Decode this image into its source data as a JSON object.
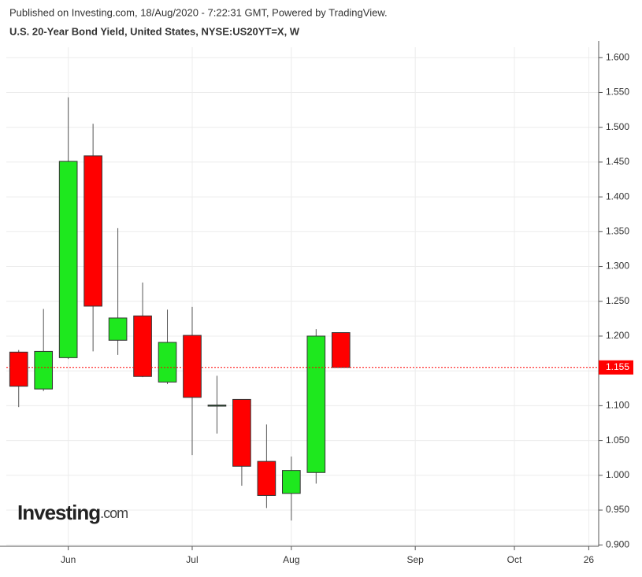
{
  "header": {
    "published": "Published on Investing.com, 18/Aug/2020 - 7:22:31 GMT, Powered by TradingView.",
    "title": "U.S. 20-Year Bond Yield, United States, NYSE:US20YT=X, W"
  },
  "watermark": {
    "brand": "Investing",
    "suffix": ".com"
  },
  "chart_data": {
    "type": "candlestick",
    "open": [
      1.177,
      1.124,
      1.169,
      1.459,
      1.194,
      1.229,
      1.134,
      1.201,
      1.101,
      1.109,
      1.02,
      0.974,
      1.004,
      1.205
    ],
    "high": [
      1.18,
      1.239,
      1.543,
      1.505,
      1.355,
      1.277,
      1.238,
      1.242,
      1.143,
      1.109,
      1.073,
      1.027,
      1.21,
      1.205
    ],
    "low": [
      1.098,
      1.121,
      1.167,
      1.178,
      1.173,
      1.141,
      1.131,
      1.029,
      1.06,
      0.985,
      0.953,
      0.935,
      0.988,
      1.155
    ],
    "close": [
      1.128,
      1.178,
      1.451,
      1.243,
      1.226,
      1.142,
      1.191,
      1.112,
      1.101,
      1.013,
      0.971,
      1.007,
      1.2,
      1.155
    ],
    "up_color": "#1ee81e",
    "down_color": "#ff0000",
    "last_value": 1.155,
    "last_color": "#ff0000",
    "xlim": [
      -0.5,
      23.4
    ],
    "xticks": [
      {
        "value": 2,
        "label": "Jun"
      },
      {
        "value": 7,
        "label": "Jul"
      },
      {
        "value": 11,
        "label": "Aug"
      },
      {
        "value": 16,
        "label": "Sep"
      },
      {
        "value": 20,
        "label": "Oct"
      },
      {
        "value": 23,
        "label": "26"
      }
    ],
    "ylim": [
      0.898,
      1.615
    ],
    "yticks": [
      {
        "value": 0.9,
        "label": "0.900"
      },
      {
        "value": 0.95,
        "label": "0.950"
      },
      {
        "value": 1.0,
        "label": "1.000"
      },
      {
        "value": 1.05,
        "label": "1.050"
      },
      {
        "value": 1.1,
        "label": "1.100"
      },
      {
        "value": 1.15,
        "label": "1.150"
      },
      {
        "value": 1.2,
        "label": "1.200"
      },
      {
        "value": 1.25,
        "label": "1.250"
      },
      {
        "value": 1.3,
        "label": "1.300"
      },
      {
        "value": 1.35,
        "label": "1.350"
      },
      {
        "value": 1.4,
        "label": "1.400"
      },
      {
        "value": 1.45,
        "label": "1.450"
      },
      {
        "value": 1.5,
        "label": "1.500"
      },
      {
        "value": 1.55,
        "label": "1.550"
      },
      {
        "value": 1.6,
        "label": "1.600"
      }
    ],
    "grid": true
  }
}
